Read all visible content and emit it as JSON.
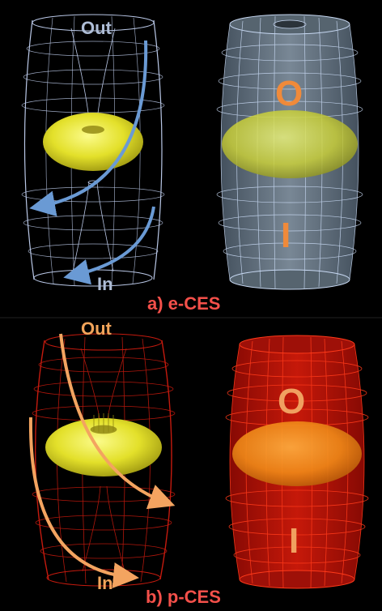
{
  "panels": [
    {
      "id": "e-ces",
      "caption": "a) e-CES",
      "caption_color": "#f4504a",
      "left_figure": {
        "top_label": "Out",
        "bottom_label": "In",
        "label_color": "#aebdd6",
        "mesh_color": "#b9c7e6",
        "arrow_color": "#6a9ad4"
      },
      "right_figure": {
        "upper_letter": "O",
        "lower_letter": "I",
        "letter_color": "#f08a3a",
        "mesh_color": "#c7d8f2",
        "fill_color": "#6f8090"
      },
      "torus_color": "#e8e62a"
    },
    {
      "id": "p-ces",
      "caption": "b) p-CES",
      "caption_color": "#f4504a",
      "left_figure": {
        "top_label": "Out",
        "bottom_label": "In",
        "label_color": "#f2a45a",
        "mesh_color": "#c41a0e",
        "arrow_color": "#f3a460"
      },
      "right_figure": {
        "upper_letter": "O",
        "lower_letter": "I",
        "letter_color": "#f0a060",
        "mesh_color": "#ff3a1a",
        "fill_color": "#b51208"
      },
      "torus_color": "#e8e62a"
    }
  ]
}
